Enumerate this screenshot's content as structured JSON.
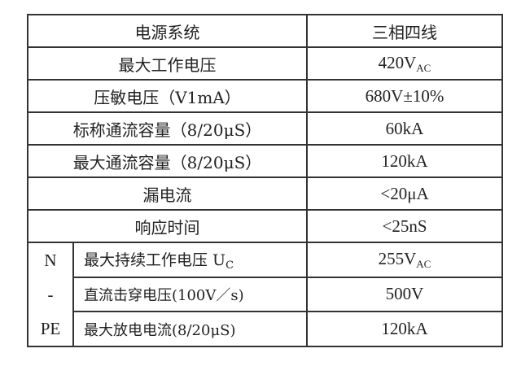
{
  "header": {
    "label": "电源系统",
    "value": "三相四线"
  },
  "rows": [
    {
      "label": "最大工作电压",
      "value": "420V",
      "value_sub": "AC"
    },
    {
      "label": "压敏电压（V1mA）",
      "value": "680V±10%"
    },
    {
      "label": "标称通流容量（8/20μS）",
      "value": "60kA"
    },
    {
      "label": "最大通流容量（8/20μS）",
      "value": "120kA"
    },
    {
      "label": "漏电流",
      "value": "<20μA"
    },
    {
      "label": "响应时间",
      "value": "<25nS"
    }
  ],
  "group": {
    "lines": [
      "N",
      "-",
      "PE"
    ],
    "rows": [
      {
        "label": "最大持续工作电压 U",
        "label_sub": "C",
        "value": "255V",
        "value_sub": "AC"
      },
      {
        "label": "直流击穿电压(100V／s)",
        "value": "500V"
      },
      {
        "label": "最大放电电流(8/20μS)",
        "value": "120kA"
      }
    ]
  }
}
